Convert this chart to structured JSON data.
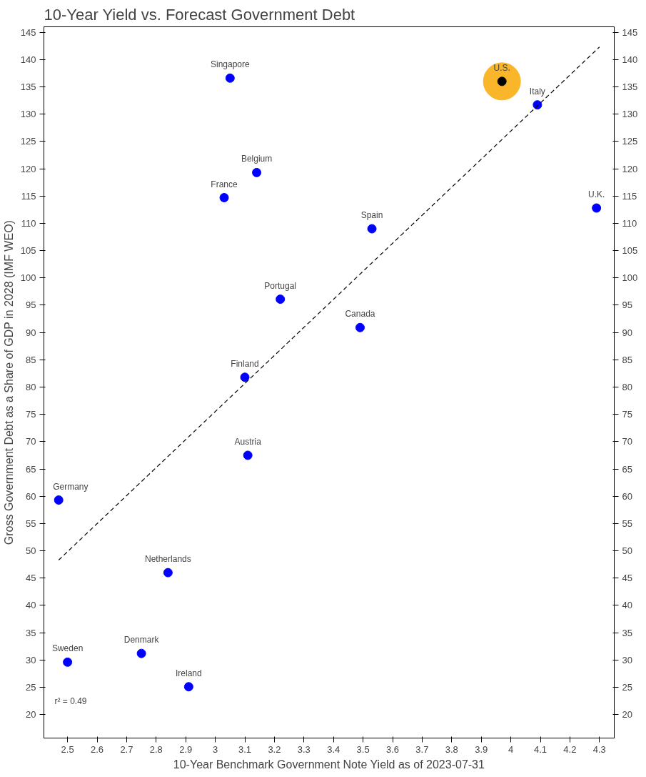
{
  "chart_data": {
    "type": "scatter",
    "title": "10-Year Yield vs. Forecast Government Debt",
    "xlabel": "10-Year Benchmark Government Note Yield as of 2023-07-31",
    "ylabel": "Gross Government Debt as a Share of GDP in 2028 (IMF WEO)",
    "xlim": [
      2.42,
      4.35
    ],
    "ylim": [
      15.7,
      146
    ],
    "y2lim": [
      15.7,
      146
    ],
    "xticks": [
      2.5,
      2.6,
      2.7,
      2.8,
      2.9,
      3.0,
      3.1,
      3.2,
      3.3,
      3.4,
      3.5,
      3.6,
      3.7,
      3.8,
      3.9,
      4.0,
      4.1,
      4.2,
      4.3
    ],
    "yticks": [
      20,
      25,
      30,
      35,
      40,
      45,
      50,
      55,
      60,
      65,
      70,
      75,
      80,
      85,
      90,
      95,
      100,
      105,
      110,
      115,
      120,
      125,
      130,
      135,
      140,
      145
    ],
    "y2ticks": [
      20,
      25,
      30,
      35,
      40,
      45,
      50,
      55,
      60,
      65,
      70,
      75,
      80,
      85,
      90,
      95,
      100,
      105,
      110,
      115,
      120,
      125,
      130,
      135,
      140,
      145
    ],
    "grid": false,
    "series": [
      {
        "type": "bubble",
        "color": "#f9b62a",
        "x": [
          3.97
        ],
        "values": [
          136.0
        ],
        "sizes": [
          1
        ]
      },
      {
        "marker": "circle",
        "x": [
          3.05,
          3.97,
          4.09,
          3.14,
          3.03,
          4.29,
          3.53,
          3.22,
          3.49,
          3.1,
          3.11,
          2.47,
          2.84,
          2.5,
          2.75,
          2.91
        ],
        "values": [
          136.6,
          136.0,
          131.7,
          119.3,
          114.7,
          112.8,
          109.0,
          96.1,
          90.9,
          81.8,
          67.5,
          59.3,
          46.0,
          29.6,
          31.2,
          25.1
        ],
        "colors": [
          "#0000ff",
          "#000000",
          "#0000ff",
          "#0000ff",
          "#0000ff",
          "#0000ff",
          "#0000ff",
          "#0000ff",
          "#0000ff",
          "#0000ff",
          "#0000ff",
          "#0000ff",
          "#0000ff",
          "#0000ff",
          "#0000ff",
          "#0000ff"
        ]
      },
      {
        "type": "line",
        "color": "#000000",
        "line_style": "dashed",
        "x": [
          2.47,
          4.3
        ],
        "values": [
          48.3,
          142.3
        ]
      }
    ],
    "annotations": [
      {
        "text": "Singapore",
        "x": 3.05,
        "y": 136.6
      },
      {
        "text": "U.S.",
        "x": 3.97,
        "y": 136.0
      },
      {
        "text": "Italy",
        "x": 4.09,
        "y": 131.7
      },
      {
        "text": "Belgium",
        "x": 3.14,
        "y": 119.3
      },
      {
        "text": "France",
        "x": 3.03,
        "y": 114.7
      },
      {
        "text": "U.K.",
        "x": 4.29,
        "y": 112.8
      },
      {
        "text": "Spain",
        "x": 3.53,
        "y": 109.0
      },
      {
        "text": "Portugal",
        "x": 3.22,
        "y": 96.1
      },
      {
        "text": "Canada",
        "x": 3.49,
        "y": 90.9
      },
      {
        "text": "Finland",
        "x": 3.1,
        "y": 81.8
      },
      {
        "text": "Austria",
        "x": 3.11,
        "y": 67.5
      },
      {
        "text": "Germany",
        "x": 2.47,
        "y": 59.3
      },
      {
        "text": "Netherlands",
        "x": 2.84,
        "y": 46.0
      },
      {
        "text": "Sweden",
        "x": 2.5,
        "y": 29.6
      },
      {
        "text": "Denmark",
        "x": 2.75,
        "y": 31.2
      },
      {
        "text": "Ireland",
        "x": 2.91,
        "y": 25.1
      },
      "r² = 0.49"
    ]
  }
}
